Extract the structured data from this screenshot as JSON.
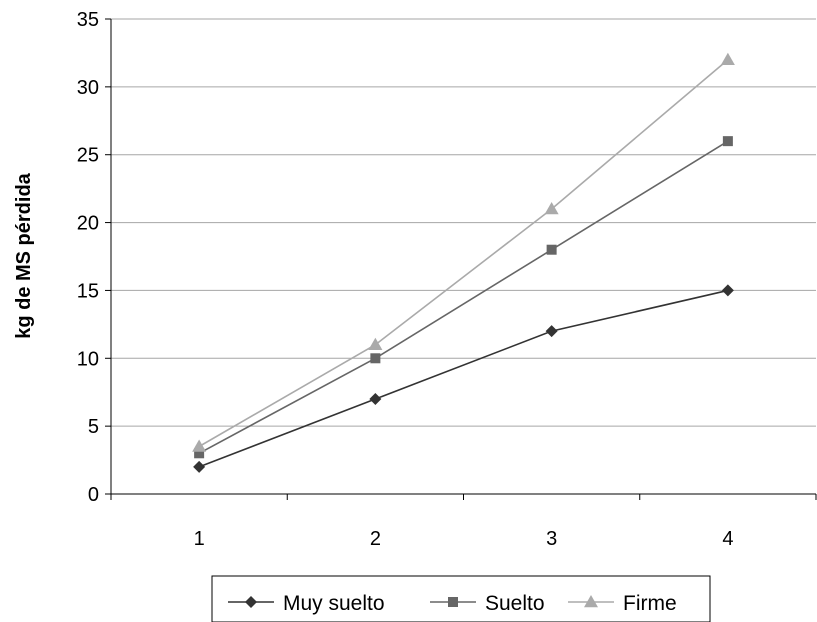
{
  "chart_data": {
    "type": "line",
    "title": "",
    "xlabel": "",
    "ylabel": "kg de MS  pérdida",
    "categories": [
      "1",
      "2",
      "3",
      "4"
    ],
    "x": [
      1,
      2,
      3,
      4
    ],
    "ylim": [
      0,
      35
    ],
    "yticks": [
      0,
      5,
      10,
      15,
      20,
      25,
      30,
      35
    ],
    "ytick_labels": [
      "0",
      "5",
      "10",
      "15",
      "20",
      "25",
      "30",
      "35"
    ],
    "grid": "horizontal",
    "legend_position": "bottom",
    "series": [
      {
        "name": "Muy suelto",
        "values": [
          2,
          7,
          12,
          15
        ],
        "color": "#333333",
        "marker": "diamond"
      },
      {
        "name": "Suelto",
        "values": [
          3,
          10,
          18,
          26
        ],
        "color": "#666666",
        "marker": "square"
      },
      {
        "name": "Firme",
        "values": [
          3.5,
          11,
          21,
          32
        ],
        "color": "#aaaaaa",
        "marker": "triangle"
      }
    ]
  }
}
